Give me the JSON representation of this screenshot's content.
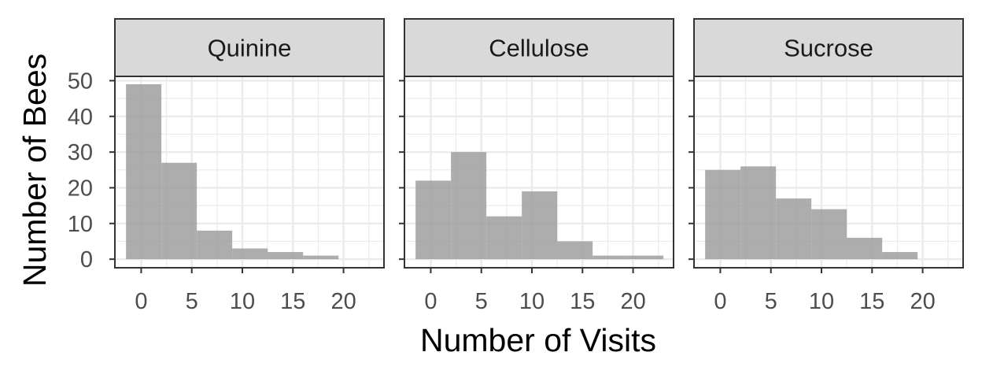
{
  "chart_data": {
    "type": "bar",
    "subtype": "faceted-histogram",
    "xlabel": "Number of Visits",
    "ylabel": "Number of Bees",
    "xlim": [
      -2.6,
      24.0
    ],
    "ylim": [
      -2.4,
      51.2
    ],
    "x_ticks": [
      0,
      5,
      10,
      15,
      20
    ],
    "x_tick_labels": [
      "0",
      "5",
      "10",
      "15",
      "20"
    ],
    "x_minor": [
      2.5,
      7.5,
      12.5,
      17.5,
      22.5
    ],
    "y_ticks": [
      0,
      10,
      20,
      30,
      40,
      50
    ],
    "y_tick_labels": [
      "0",
      "10",
      "20",
      "30",
      "40",
      "50"
    ],
    "y_minor": [
      5,
      15,
      25,
      35,
      45
    ],
    "bin_edges": [
      -1.5,
      2,
      5.5,
      9,
      12.5,
      16,
      19.5,
      23
    ],
    "grid": true,
    "facets": [
      {
        "name": "Quinine",
        "counts": [
          49,
          27,
          8,
          3,
          2,
          1,
          0
        ]
      },
      {
        "name": "Cellulose",
        "counts": [
          22,
          30,
          12,
          19,
          5,
          1,
          1
        ]
      },
      {
        "name": "Sucrose",
        "counts": [
          25,
          26,
          17,
          14,
          6,
          2,
          0
        ]
      }
    ]
  },
  "colors": {
    "bar": "#999999",
    "strip": "#d9d9d9",
    "grid": "#ebebeb",
    "border": "#333333",
    "tick_text": "#4d4d4d"
  }
}
